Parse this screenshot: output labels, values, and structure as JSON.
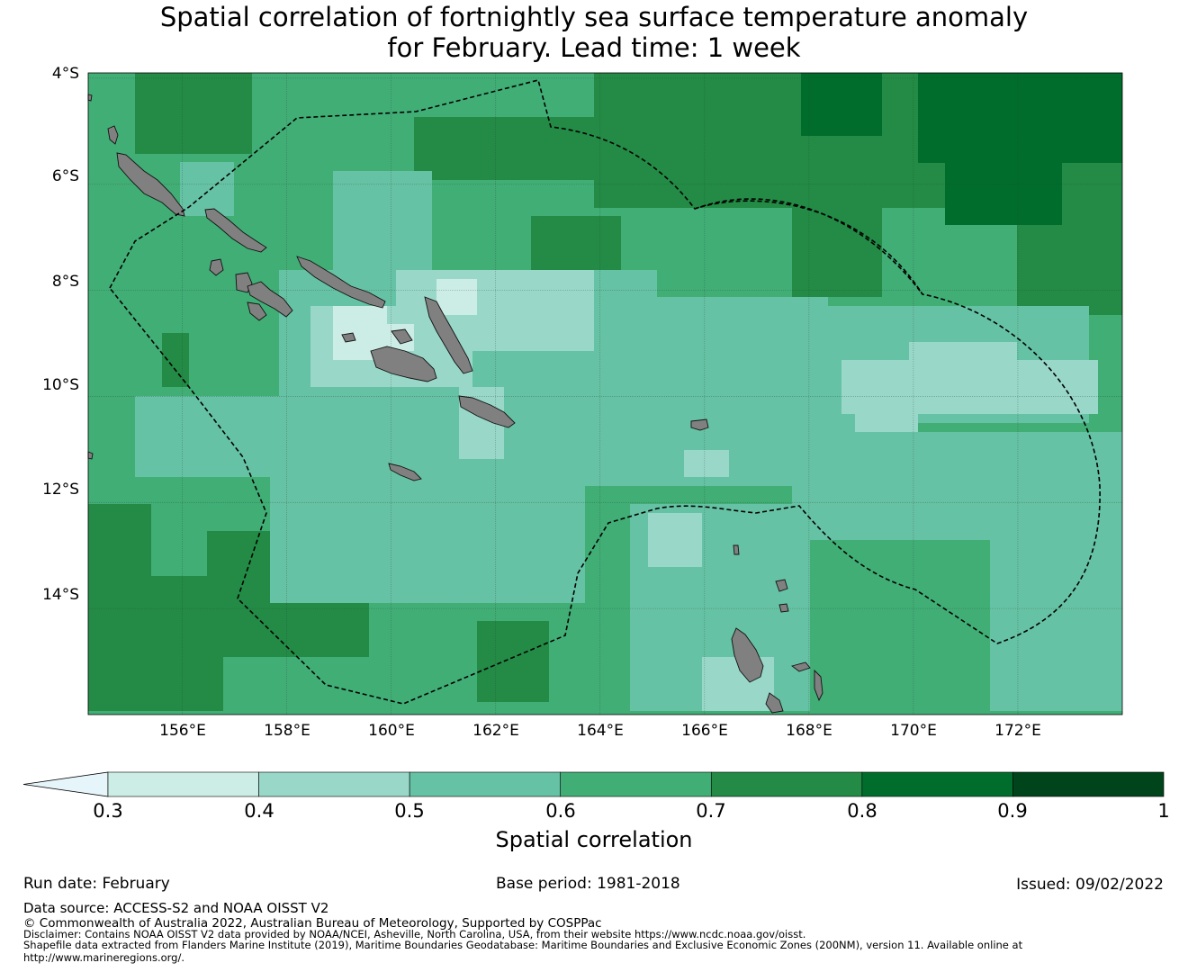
{
  "title": {
    "line1": "Spatial correlation of fortnightly sea surface temperature anomaly",
    "line2": "for February. Lead time: 1 week"
  },
  "chart_data": {
    "type": "heatmap",
    "title": "Spatial correlation of fortnightly sea surface temperature anomaly for February. Lead time: 1 week",
    "xlabel": "",
    "ylabel": "",
    "lon_range": [
      154.2,
      174.0
    ],
    "lat_range": [
      -16.0,
      -3.9
    ],
    "lat_ticks": [
      "4°S",
      "6°S",
      "8°S",
      "10°S",
      "12°S",
      "14°S"
    ],
    "lat_tick_values": [
      -4,
      -6,
      -8,
      -10,
      -12,
      -14
    ],
    "lon_ticks": [
      "156°E",
      "158°E",
      "160°E",
      "162°E",
      "164°E",
      "166°E",
      "168°E",
      "170°E",
      "172°E"
    ],
    "lon_tick_values": [
      156,
      158,
      160,
      162,
      164,
      166,
      168,
      170,
      172
    ],
    "colorbar": {
      "label": "Spatial correlation",
      "ticks": [
        "0.3",
        "0.4",
        "0.5",
        "0.6",
        "0.7",
        "0.8",
        "0.9",
        "1"
      ],
      "bounds": [
        0.3,
        0.4,
        0.5,
        0.6,
        0.7,
        0.8,
        0.9,
        1.0
      ],
      "colors": [
        "#ccede5",
        "#99d8c9",
        "#66c2a4",
        "#41ae76",
        "#238b45",
        "#006d2c",
        "#00441b"
      ],
      "under_color": "#e5f5f9",
      "extend": "min"
    },
    "regions": [
      {
        "name": "background",
        "value": 0.65
      },
      {
        "name": "northeast-band",
        "value": 0.75
      },
      {
        "name": "far-northeast",
        "value": 0.85
      },
      {
        "name": "central-band",
        "value": 0.55
      },
      {
        "name": "solomon-high",
        "value": 0.45
      },
      {
        "name": "east-band",
        "value": 0.45
      },
      {
        "name": "solomon-core",
        "value": 0.35
      }
    ],
    "grid": true
  },
  "colors": {
    "land": "#808080",
    "boundary": "#000000"
  },
  "footer": {
    "run_date": "Run date: February",
    "base_period": "Base period: 1981-2018",
    "issued": "Issued: 09/02/2022",
    "data_source": "Data source: ACCESS-S2 and NOAA OISST V2",
    "copyright": "© Commonwealth of Australia 2022, Australian Bureau of Meteorology, Supported by COSPPac",
    "disclaimer": "Disclaimer: Contains NOAA OISST V2 data provided by NOAA/NCEI, Asheville, North Carolina, USA, from their website https://www.ncdc.noaa.gov/oisst.",
    "shapefile_line1": "Shapefile data extracted from Flanders Marine Institute (2019), Maritime Boundaries Geodatabase: Maritime Boundaries and Exclusive Economic Zones (200NM), version 11. Available online at",
    "shapefile_line2": "http://www.marineregions.org/."
  }
}
